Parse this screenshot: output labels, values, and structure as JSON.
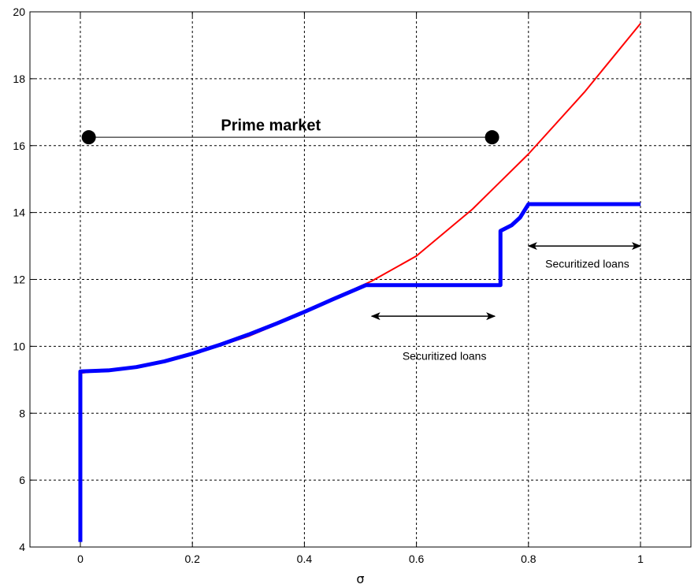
{
  "chart_data": {
    "type": "line",
    "title": "",
    "xlabel": "σ",
    "ylabel": "",
    "xlim": [
      -0.09,
      1.09
    ],
    "ylim": [
      4,
      20
    ],
    "xticks": [
      0,
      0.2,
      0.4,
      0.6,
      0.8,
      1
    ],
    "xtick_labels": [
      "0",
      "0.2",
      "0.4",
      "0.6",
      "0.8",
      "1"
    ],
    "yticks": [
      4,
      6,
      8,
      10,
      12,
      14,
      16,
      18,
      20
    ],
    "ytick_labels": [
      "4",
      "6",
      "8",
      "10",
      "12",
      "14",
      "16",
      "18",
      "20"
    ],
    "grid": true,
    "series": [
      {
        "color": "#ff0000",
        "line_width": "thin",
        "x": [
          0,
          0.1,
          0.2,
          0.3,
          0.4,
          0.5,
          0.52,
          0.6,
          0.7,
          0.8,
          0.9,
          1.0
        ],
        "y": [
          9.2,
          9.4,
          9.75,
          10.3,
          11.0,
          11.8,
          11.95,
          12.7,
          14.1,
          15.75,
          17.6,
          19.65
        ]
      },
      {
        "color": "#0000ff",
        "line_width": "thick",
        "x": [
          0,
          0,
          0.05,
          0.1,
          0.15,
          0.2,
          0.25,
          0.3,
          0.35,
          0.4,
          0.45,
          0.51,
          0.75,
          0.75,
          0.77,
          0.785,
          0.8,
          1.0
        ],
        "y": [
          4.15,
          9.25,
          9.28,
          9.38,
          9.55,
          9.78,
          10.05,
          10.35,
          10.68,
          11.03,
          11.4,
          11.83,
          11.83,
          13.45,
          13.62,
          13.85,
          14.25,
          14.25
        ]
      }
    ],
    "annotations": [
      {
        "text": "Prime market",
        "style": "bold",
        "x": 0.34,
        "y": 16.45
      },
      {
        "text": "Securitized loans",
        "x": 0.65,
        "y": 9.6
      },
      {
        "text": "Securitized loans",
        "x": 0.905,
        "y": 12.35
      }
    ],
    "intervals": [
      {
        "kind": "dots",
        "x1": 0.015,
        "x2": 0.735,
        "y": 16.25
      },
      {
        "kind": "arrows",
        "x1": 0.52,
        "x2": 0.74,
        "y": 10.9
      },
      {
        "kind": "arrows",
        "x1": 0.8,
        "x2": 1.0,
        "y": 13.0
      }
    ]
  }
}
